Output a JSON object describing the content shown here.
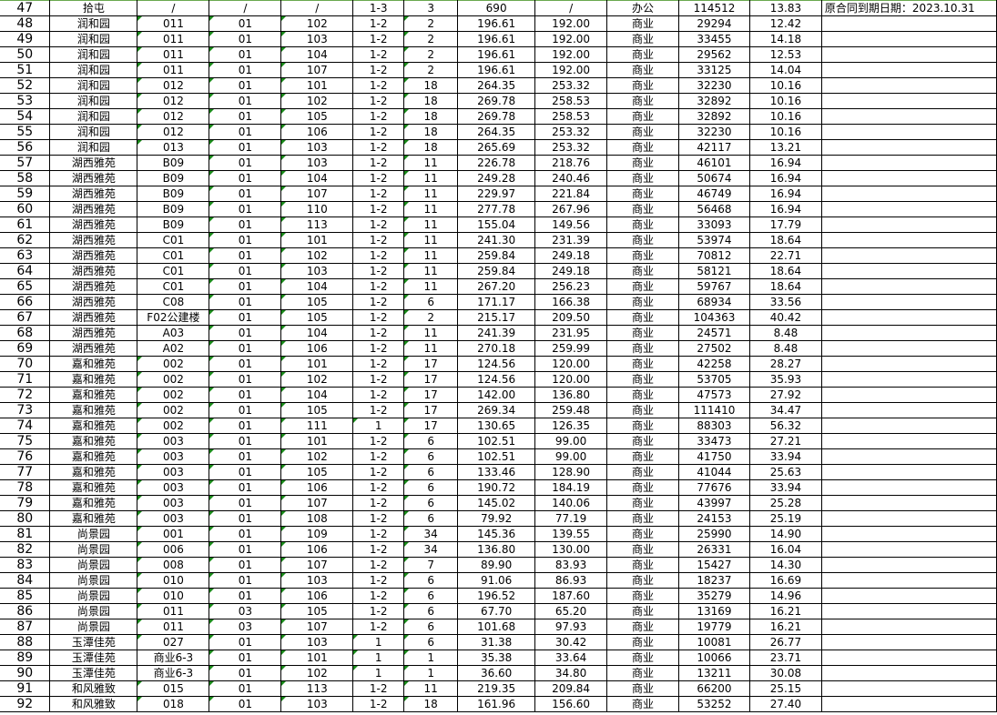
{
  "sheet": {
    "rows": [
      {
        "n": "47",
        "c": [
          "拾屯",
          "/",
          "/",
          "/",
          "1-3",
          "3",
          "690",
          "/",
          "办公",
          "114512",
          "13.83",
          "原合同到期日期：2023.10.31"
        ]
      },
      {
        "n": "48",
        "c": [
          "润和园",
          "011",
          "01",
          "102",
          "1-2",
          "2",
          "196.61",
          "192.00",
          "商业",
          "29294",
          "12.42",
          ""
        ]
      },
      {
        "n": "49",
        "c": [
          "润和园",
          "011",
          "01",
          "103",
          "1-2",
          "2",
          "196.61",
          "192.00",
          "商业",
          "33455",
          "14.18",
          ""
        ]
      },
      {
        "n": "50",
        "c": [
          "润和园",
          "011",
          "01",
          "104",
          "1-2",
          "2",
          "196.61",
          "192.00",
          "商业",
          "29562",
          "12.53",
          ""
        ]
      },
      {
        "n": "51",
        "c": [
          "润和园",
          "011",
          "01",
          "107",
          "1-2",
          "2",
          "196.61",
          "192.00",
          "商业",
          "33125",
          "14.04",
          ""
        ]
      },
      {
        "n": "52",
        "c": [
          "润和园",
          "012",
          "01",
          "101",
          "1-2",
          "18",
          "264.35",
          "253.32",
          "商业",
          "32230",
          "10.16",
          ""
        ]
      },
      {
        "n": "53",
        "c": [
          "润和园",
          "012",
          "01",
          "102",
          "1-2",
          "18",
          "269.78",
          "258.53",
          "商业",
          "32892",
          "10.16",
          ""
        ]
      },
      {
        "n": "54",
        "c": [
          "润和园",
          "012",
          "01",
          "105",
          "1-2",
          "18",
          "269.78",
          "258.53",
          "商业",
          "32892",
          "10.16",
          ""
        ]
      },
      {
        "n": "55",
        "c": [
          "润和园",
          "012",
          "01",
          "106",
          "1-2",
          "18",
          "264.35",
          "253.32",
          "商业",
          "32230",
          "10.16",
          ""
        ]
      },
      {
        "n": "56",
        "c": [
          "润和园",
          "013",
          "01",
          "103",
          "1-2",
          "18",
          "265.69",
          "253.32",
          "商业",
          "42117",
          "13.21",
          ""
        ]
      },
      {
        "n": "57",
        "c": [
          "湖西雅苑",
          "B09",
          "01",
          "103",
          "1-2",
          "11",
          "226.78",
          "218.76",
          "商业",
          "46101",
          "16.94",
          ""
        ]
      },
      {
        "n": "58",
        "c": [
          "湖西雅苑",
          "B09",
          "01",
          "104",
          "1-2",
          "11",
          "249.28",
          "240.46",
          "商业",
          "50674",
          "16.94",
          ""
        ]
      },
      {
        "n": "59",
        "c": [
          "湖西雅苑",
          "B09",
          "01",
          "107",
          "1-2",
          "11",
          "229.97",
          "221.84",
          "商业",
          "46749",
          "16.94",
          ""
        ]
      },
      {
        "n": "60",
        "c": [
          "湖西雅苑",
          "B09",
          "01",
          "110",
          "1-2",
          "11",
          "277.78",
          "267.96",
          "商业",
          "56468",
          "16.94",
          ""
        ]
      },
      {
        "n": "61",
        "c": [
          "湖西雅苑",
          "B09",
          "01",
          "113",
          "1-2",
          "11",
          "155.04",
          "149.56",
          "商业",
          "33093",
          "17.79",
          ""
        ]
      },
      {
        "n": "62",
        "c": [
          "湖西雅苑",
          "C01",
          "01",
          "101",
          "1-2",
          "11",
          "241.30",
          "231.39",
          "商业",
          "53974",
          "18.64",
          ""
        ]
      },
      {
        "n": "63",
        "c": [
          "湖西雅苑",
          "C01",
          "01",
          "102",
          "1-2",
          "11",
          "259.84",
          "249.18",
          "商业",
          "70812",
          "22.71",
          ""
        ]
      },
      {
        "n": "64",
        "c": [
          "湖西雅苑",
          "C01",
          "01",
          "103",
          "1-2",
          "11",
          "259.84",
          "249.18",
          "商业",
          "58121",
          "18.64",
          ""
        ]
      },
      {
        "n": "65",
        "c": [
          "湖西雅苑",
          "C01",
          "01",
          "104",
          "1-2",
          "11",
          "267.20",
          "256.23",
          "商业",
          "59767",
          "18.64",
          ""
        ]
      },
      {
        "n": "66",
        "c": [
          "湖西雅苑",
          "C08",
          "01",
          "105",
          "1-2",
          "6",
          "171.17",
          "166.38",
          "商业",
          "68934",
          "33.56",
          ""
        ]
      },
      {
        "n": "67",
        "c": [
          "湖西雅苑",
          "F02公建楼",
          "01",
          "105",
          "1-2",
          "2",
          "215.17",
          "209.50",
          "商业",
          "104363",
          "40.42",
          ""
        ]
      },
      {
        "n": "68",
        "c": [
          "湖西雅苑",
          "A03",
          "01",
          "104",
          "1-2",
          "11",
          "241.39",
          "231.95",
          "商业",
          "24571",
          "8.48",
          ""
        ]
      },
      {
        "n": "69",
        "c": [
          "湖西雅苑",
          "A02",
          "01",
          "106",
          "1-2",
          "11",
          "270.18",
          "259.99",
          "商业",
          "27502",
          "8.48",
          ""
        ]
      },
      {
        "n": "70",
        "c": [
          "嘉和雅苑",
          "002",
          "01",
          "101",
          "1-2",
          "17",
          "124.56",
          "120.00",
          "商业",
          "42258",
          "28.27",
          ""
        ]
      },
      {
        "n": "71",
        "c": [
          "嘉和雅苑",
          "002",
          "01",
          "102",
          "1-2",
          "17",
          "124.56",
          "120.00",
          "商业",
          "53705",
          "35.93",
          ""
        ]
      },
      {
        "n": "72",
        "c": [
          "嘉和雅苑",
          "002",
          "01",
          "104",
          "1-2",
          "17",
          "142.00",
          "136.80",
          "商业",
          "47573",
          "27.92",
          ""
        ]
      },
      {
        "n": "73",
        "c": [
          "嘉和雅苑",
          "002",
          "01",
          "105",
          "1-2",
          "17",
          "269.34",
          "259.48",
          "商业",
          "111410",
          "34.47",
          ""
        ]
      },
      {
        "n": "74",
        "c": [
          "嘉和雅苑",
          "002",
          "01",
          "111",
          "1",
          "17",
          "130.65",
          "126.35",
          "商业",
          "88303",
          "56.32",
          ""
        ]
      },
      {
        "n": "75",
        "c": [
          "嘉和雅苑",
          "003",
          "01",
          "101",
          "1-2",
          "6",
          "102.51",
          "99.00",
          "商业",
          "33473",
          "27.21",
          ""
        ]
      },
      {
        "n": "76",
        "c": [
          "嘉和雅苑",
          "003",
          "01",
          "102",
          "1-2",
          "6",
          "102.51",
          "99.00",
          "商业",
          "41750",
          "33.94",
          ""
        ]
      },
      {
        "n": "77",
        "c": [
          "嘉和雅苑",
          "003",
          "01",
          "105",
          "1-2",
          "6",
          "133.46",
          "128.90",
          "商业",
          "41044",
          "25.63",
          ""
        ]
      },
      {
        "n": "78",
        "c": [
          "嘉和雅苑",
          "003",
          "01",
          "106",
          "1-2",
          "6",
          "190.72",
          "184.19",
          "商业",
          "77676",
          "33.94",
          ""
        ]
      },
      {
        "n": "79",
        "c": [
          "嘉和雅苑",
          "003",
          "01",
          "107",
          "1-2",
          "6",
          "145.02",
          "140.06",
          "商业",
          "43997",
          "25.28",
          ""
        ]
      },
      {
        "n": "80",
        "c": [
          "嘉和雅苑",
          "003",
          "01",
          "108",
          "1-2",
          "6",
          "79.92",
          "77.19",
          "商业",
          "24153",
          "25.19",
          ""
        ]
      },
      {
        "n": "81",
        "c": [
          "尚景园",
          "001",
          "01",
          "109",
          "1-2",
          "34",
          "145.36",
          "139.55",
          "商业",
          "25990",
          "14.90",
          ""
        ]
      },
      {
        "n": "82",
        "c": [
          "尚景园",
          "006",
          "01",
          "106",
          "1-2",
          "34",
          "136.80",
          "130.00",
          "商业",
          "26331",
          "16.04",
          ""
        ]
      },
      {
        "n": "83",
        "c": [
          "尚景园",
          "008",
          "01",
          "107",
          "1-2",
          "7",
          "89.90",
          "83.93",
          "商业",
          "15427",
          "14.30",
          ""
        ]
      },
      {
        "n": "84",
        "c": [
          "尚景园",
          "010",
          "01",
          "103",
          "1-2",
          "6",
          "91.06",
          "86.93",
          "商业",
          "18237",
          "16.69",
          ""
        ]
      },
      {
        "n": "85",
        "c": [
          "尚景园",
          "010",
          "01",
          "106",
          "1-2",
          "6",
          "196.52",
          "187.60",
          "商业",
          "35279",
          "14.96",
          ""
        ]
      },
      {
        "n": "86",
        "c": [
          "尚景园",
          "011",
          "03",
          "105",
          "1-2",
          "6",
          "67.70",
          "65.20",
          "商业",
          "13169",
          "16.21",
          ""
        ]
      },
      {
        "n": "87",
        "c": [
          "尚景园",
          "011",
          "03",
          "107",
          "1-2",
          "6",
          "101.68",
          "97.93",
          "商业",
          "19779",
          "16.21",
          ""
        ]
      },
      {
        "n": "88",
        "c": [
          "玉潭佳苑",
          "027",
          "01",
          "103",
          "1",
          "6",
          "31.38",
          "30.42",
          "商业",
          "10081",
          "26.77",
          ""
        ]
      },
      {
        "n": "89",
        "c": [
          "玉潭佳苑",
          "商业6-3",
          "01",
          "101",
          "1",
          "1",
          "35.38",
          "33.64",
          "商业",
          "10066",
          "23.71",
          ""
        ]
      },
      {
        "n": "90",
        "c": [
          "玉潭佳苑",
          "商业6-3",
          "01",
          "102",
          "1",
          "1",
          "36.60",
          "34.80",
          "商业",
          "13211",
          "30.08",
          ""
        ]
      },
      {
        "n": "91",
        "c": [
          "和风雅致",
          "015",
          "01",
          "113",
          "1-2",
          "11",
          "219.35",
          "209.84",
          "商业",
          "66200",
          "25.15",
          ""
        ]
      },
      {
        "n": "92",
        "c": [
          "和风雅致",
          "018",
          "01",
          "103",
          "1-2",
          "18",
          "161.96",
          "156.60",
          "商业",
          "53252",
          "27.40",
          ""
        ]
      }
    ]
  },
  "colors": {
    "grid": "#000000",
    "text_marker": "#1a8a1a",
    "selection": "#6aa84f"
  }
}
